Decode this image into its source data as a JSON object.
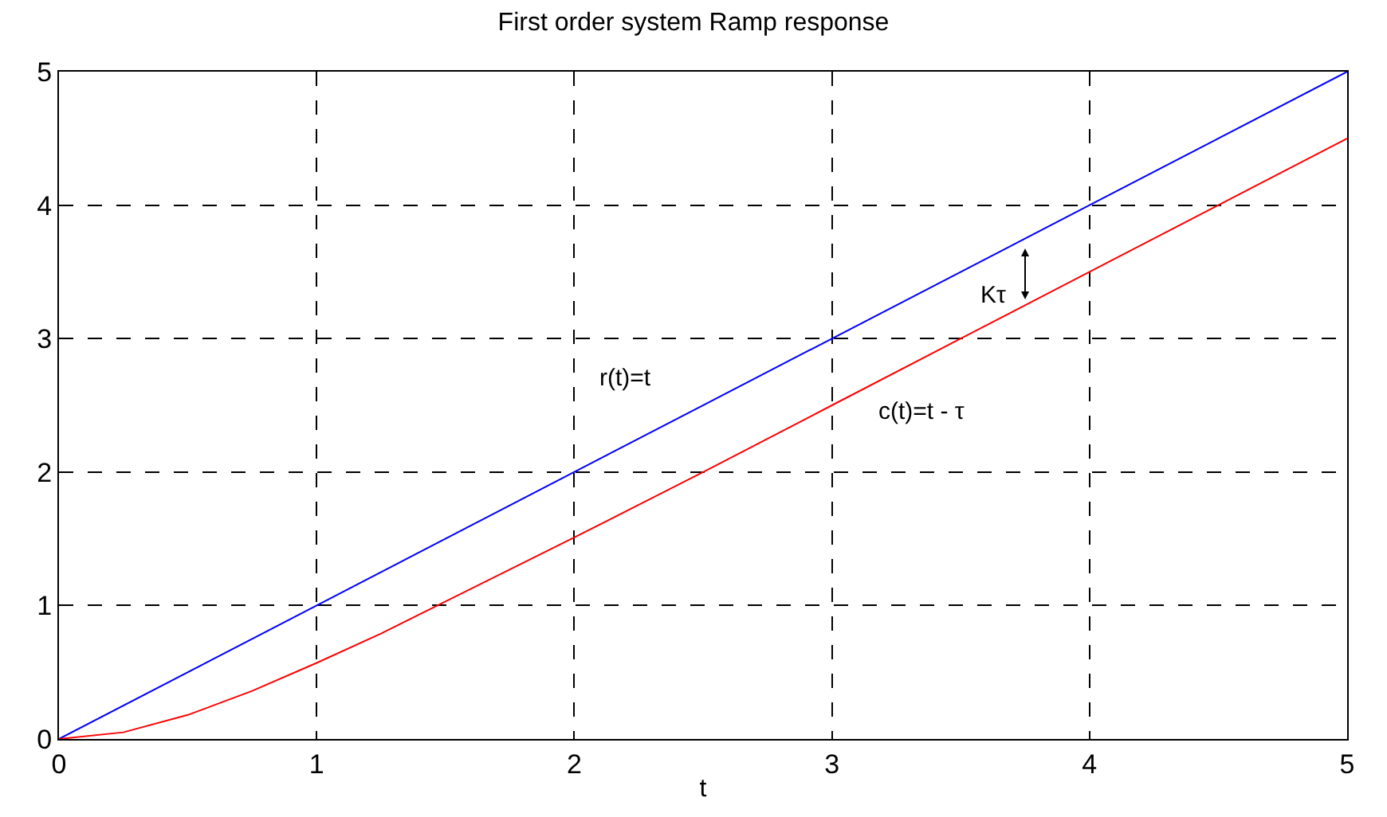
{
  "chart_data": {
    "type": "line",
    "title": "First order system Ramp response",
    "xlabel": "t",
    "xlim": [
      0,
      5
    ],
    "ylim": [
      0,
      5
    ],
    "xticks": [
      0,
      1,
      2,
      3,
      4,
      5
    ],
    "yticks": [
      0,
      1,
      2,
      3,
      4,
      5
    ],
    "grid": true,
    "line_style": "solid",
    "marker": "none",
    "series": [
      {
        "color": "#0000ff",
        "x": [
          0,
          5
        ],
        "values": [
          0,
          5
        ]
      },
      {
        "color": "#ff0000",
        "x": [
          0,
          0.25,
          0.5,
          0.75,
          1,
          1.25,
          1.5,
          2,
          2.5,
          3,
          3.5,
          4,
          4.5,
          5
        ],
        "values": [
          0,
          0.05,
          0.18,
          0.36,
          0.57,
          0.79,
          1.03,
          1.51,
          2.0,
          2.5,
          3.0,
          3.5,
          4.0,
          4.5
        ]
      }
    ],
    "annotations": [
      "r(t)=t",
      "c(t)=t - τ",
      "Kτ"
    ]
  }
}
